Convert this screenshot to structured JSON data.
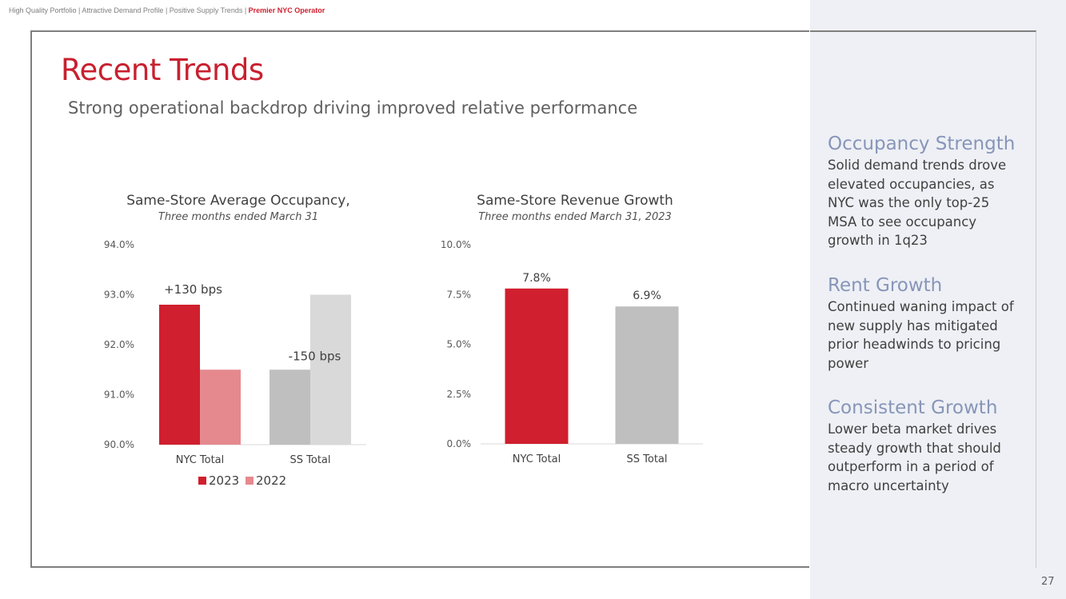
{
  "breadcrumb": {
    "items": [
      "High Quality Portfolio",
      "Attractive Demand Profile",
      "Positive Supply Trends"
    ],
    "active": "Premier NYC Operator",
    "separator": " | "
  },
  "header": {
    "title": "Recent Trends",
    "subtitle": "Strong operational backdrop driving improved relative performance"
  },
  "colors": {
    "accent": "#d01f2e",
    "light_accent": "#e5898f",
    "gray": "#bfbfbf",
    "light_gray": "#d9d9d9",
    "side_heading": "#8795b8"
  },
  "chart_data": [
    {
      "type": "bar",
      "title": "Same-Store Average Occupancy,",
      "subtitle": "Three months ended March 31",
      "categories": [
        "NYC Total",
        "SS Total"
      ],
      "series": [
        {
          "name": "2023",
          "values": [
            92.8,
            91.5
          ]
        },
        {
          "name": "2022",
          "values": [
            91.5,
            93.0
          ]
        }
      ],
      "ylim": [
        90.0,
        94.0
      ],
      "yticks": [
        "94.0%",
        "93.0%",
        "92.0%",
        "91.0%",
        "90.0%"
      ],
      "ytick_values": [
        94,
        93,
        92,
        91,
        90
      ],
      "annotations": [
        "+130 bps",
        "-150 bps"
      ],
      "legend": [
        "2023",
        "2022"
      ],
      "legend_position": "bottom"
    },
    {
      "type": "bar",
      "title": "Same-Store Revenue Growth",
      "subtitle": "Three months ended March 31, 2023",
      "categories": [
        "NYC Total",
        "SS Total"
      ],
      "values": [
        7.8,
        6.9
      ],
      "data_labels": [
        "7.8%",
        "6.9%"
      ],
      "ylim": [
        0.0,
        10.0
      ],
      "yticks": [
        "10.0%",
        "7.5%",
        "5.0%",
        "2.5%",
        "0.0%"
      ],
      "ytick_values": [
        10,
        7.5,
        5,
        2.5,
        0
      ]
    }
  ],
  "sidebar": {
    "sections": [
      {
        "heading": "Occupancy Strength",
        "lines": [
          "Solid demand trends drove",
          "elevated occupancies, as",
          "NYC was the only top-25",
          "MSA to see occupancy",
          "growth in 1q23"
        ]
      },
      {
        "heading": "Rent Growth",
        "lines": [
          "Continued waning impact of",
          "new supply has mitigated",
          "prior headwinds to pricing",
          "power"
        ]
      },
      {
        "heading": "Consistent Growth",
        "lines": [
          "Lower beta market drives",
          "steady growth that should",
          "outperform in a period of",
          "macro uncertainty"
        ]
      }
    ]
  },
  "page_number": "27"
}
